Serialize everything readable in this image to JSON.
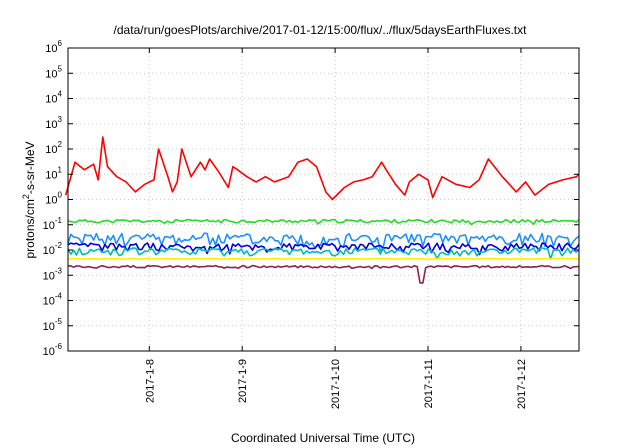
{
  "chart_data": {
    "type": "line",
    "title": "/data/run/goesPlots/archive/2017-01-12/15:00/flux/../flux/5daysEarthFluxes.txt",
    "xlabel": "Coordinated Universal Time (UTC)",
    "ylabel": "protons/cm²-s-sr-MeV",
    "ylabel_parts": {
      "prefix": "protons/cm",
      "sup": "2",
      "suffix": "-s-sr-MeV"
    },
    "y_scale": "log",
    "ylim": [
      1e-06,
      1000000.0
    ],
    "yticks": [
      {
        "base": "10",
        "exp": "-6"
      },
      {
        "base": "10",
        "exp": "-5"
      },
      {
        "base": "10",
        "exp": "-4"
      },
      {
        "base": "10",
        "exp": "-3"
      },
      {
        "base": "10",
        "exp": "-2"
      },
      {
        "base": "10",
        "exp": "-1"
      },
      {
        "base": "10",
        "exp": "0"
      },
      {
        "base": "10",
        "exp": "1"
      },
      {
        "base": "10",
        "exp": "2"
      },
      {
        "base": "10",
        "exp": "3"
      },
      {
        "base": "10",
        "exp": "4"
      },
      {
        "base": "10",
        "exp": "5"
      },
      {
        "base": "10",
        "exp": "6"
      }
    ],
    "xlim": [
      "2017-01-07 03:00",
      "2017-01-12 15:00"
    ],
    "xticks": [
      "2017-1-8",
      "2017-1-9",
      "2017-1-10",
      "2017-1-11",
      "2017-1-12"
    ],
    "grid": true,
    "series": [
      {
        "color": "#ff0000",
        "width": 1.6,
        "x": [
          7.1,
          7.2,
          7.3,
          7.4,
          7.45,
          7.5,
          7.55,
          7.65,
          7.75,
          7.85,
          7.95,
          8.05,
          8.1,
          8.2,
          8.25,
          8.3,
          8.35,
          8.45,
          8.55,
          8.6,
          8.65,
          8.75,
          8.85,
          8.9,
          8.95,
          9.05,
          9.15,
          9.25,
          9.35,
          9.5,
          9.6,
          9.7,
          9.8,
          9.9,
          9.97,
          10.1,
          10.2,
          10.3,
          10.4,
          10.5,
          10.55,
          10.65,
          10.75,
          10.8,
          10.9,
          11.0,
          11.05,
          11.15,
          11.3,
          11.45,
          11.55,
          11.65,
          11.8,
          11.95,
          12.05,
          12.15,
          12.3,
          12.45,
          12.6,
          12.62
        ],
        "y": [
          1.5,
          30,
          15,
          25,
          6,
          300,
          20,
          8,
          5,
          2,
          4,
          6,
          100,
          8,
          2,
          5,
          100,
          8,
          30,
          15,
          40,
          12,
          3,
          20,
          15,
          8,
          5,
          8,
          5,
          8,
          30,
          40,
          20,
          2,
          1,
          3,
          5,
          6,
          8,
          30,
          15,
          4,
          1.5,
          5,
          10,
          6,
          1.2,
          8,
          4,
          3,
          6,
          40,
          8,
          2,
          5,
          1.5,
          4,
          6,
          8,
          10
        ]
      },
      {
        "color": "#22dd22",
        "width": 1.6,
        "base": 0.14,
        "amp": 0.15,
        "seed": 11
      },
      {
        "color": "#1e90ff",
        "width": 1.6,
        "base": 0.03,
        "amp": 0.55,
        "seed": 23
      },
      {
        "color": "#0000dd",
        "width": 1.6,
        "base": 0.014,
        "amp": 0.35,
        "seed": 37
      },
      {
        "color": "#00bbbb",
        "width": 1.6,
        "base": 0.009,
        "amp": 0.35,
        "seed": 41
      },
      {
        "color": "#ffee00",
        "width": 1.6,
        "base": 0.0045,
        "amp": 0.03,
        "seed": 53
      },
      {
        "color": "#8b2252",
        "width": 1.6,
        "base": 0.0022,
        "amp": 0.1,
        "seed": 67
      }
    ]
  }
}
